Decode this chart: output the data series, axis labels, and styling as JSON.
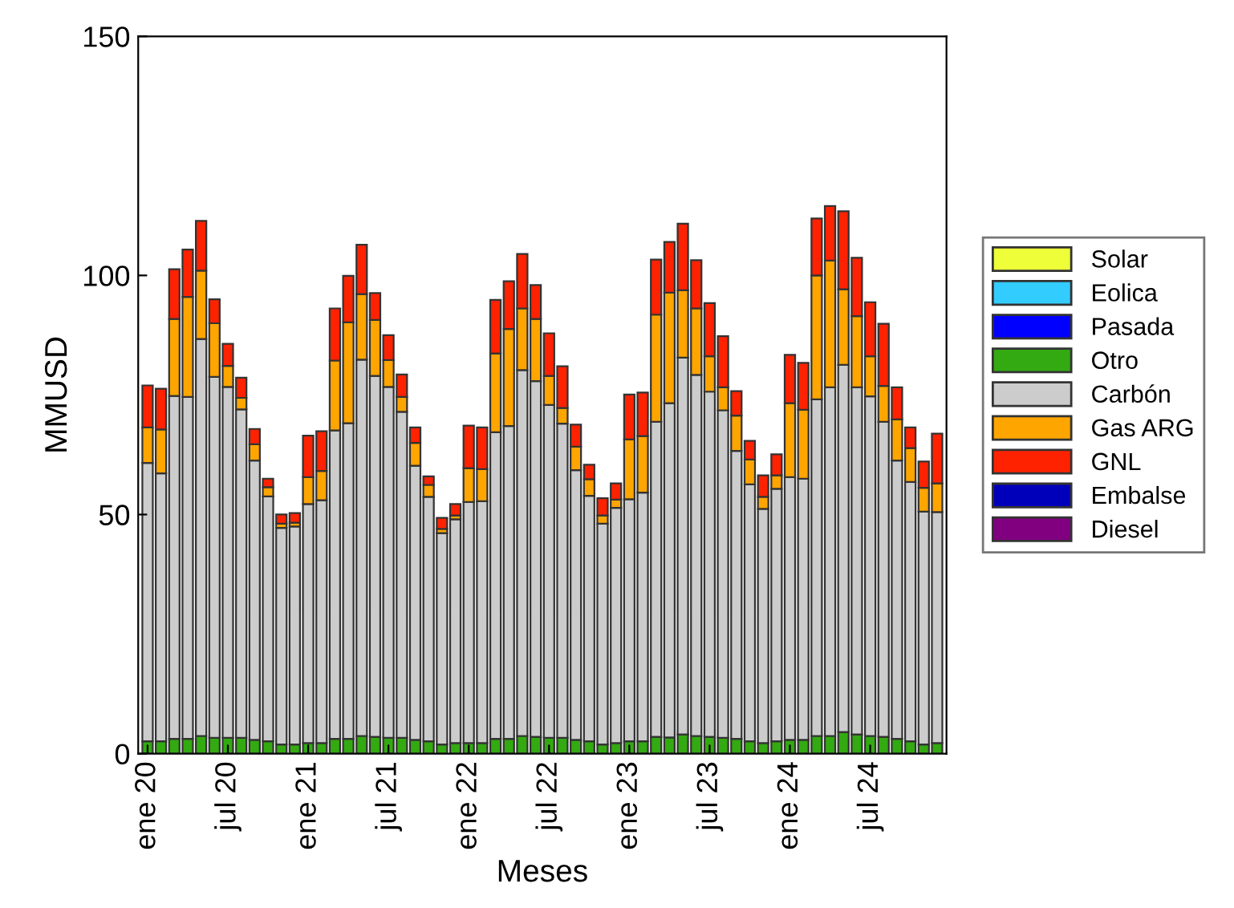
{
  "chart_data": {
    "type": "bar",
    "stacked": true,
    "xlabel": "Meses",
    "ylabel": "MMUSD",
    "categories": [
      "ene 20",
      null,
      null,
      null,
      null,
      null,
      "jul 20",
      null,
      null,
      null,
      null,
      null,
      "ene 21",
      null,
      null,
      null,
      null,
      null,
      "jul 21",
      null,
      null,
      null,
      null,
      null,
      "ene 22",
      null,
      null,
      null,
      null,
      null,
      "jul 22",
      null,
      null,
      null,
      null,
      null,
      "ene 23",
      null,
      null,
      null,
      null,
      null,
      "jul 23",
      null,
      null,
      null,
      null,
      null,
      "ene 24",
      null,
      null,
      null,
      null,
      null,
      "jul 24",
      null,
      null,
      null,
      null,
      null
    ],
    "ylim": [
      0,
      150
    ],
    "yticks": [
      0,
      50,
      100,
      150
    ],
    "grid": false,
    "legend": "right",
    "series": [
      {
        "name": "Solar",
        "color": "#eeff3a",
        "values": [
          0,
          0,
          0,
          0,
          0,
          0,
          0,
          0,
          0,
          0,
          0,
          0,
          0,
          0,
          0,
          0,
          0,
          0,
          0,
          0,
          0,
          0,
          0,
          0,
          0,
          0,
          0,
          0,
          0,
          0,
          0,
          0,
          0,
          0,
          0,
          0,
          0,
          0,
          0,
          0,
          0,
          0,
          0,
          0,
          0,
          0,
          0,
          0,
          0,
          0,
          0,
          0,
          0,
          0,
          0,
          0,
          0,
          0,
          0,
          0
        ]
      },
      {
        "name": "Eolica",
        "color": "#33ccff",
        "values": [
          0,
          0,
          0,
          0,
          0,
          0,
          0,
          0,
          0,
          0,
          0,
          0,
          0,
          0,
          0,
          0,
          0,
          0,
          0,
          0,
          0,
          0,
          0,
          0,
          0,
          0,
          0,
          0,
          0,
          0,
          0,
          0,
          0,
          0,
          0,
          0,
          0,
          0,
          0,
          0,
          0,
          0,
          0,
          0,
          0,
          0,
          0,
          0,
          0,
          0,
          0,
          0,
          0,
          0,
          0,
          0,
          0,
          0,
          0,
          0
        ]
      },
      {
        "name": "Pasada",
        "color": "#0000ff",
        "values": [
          0,
          0,
          0,
          0,
          0,
          0,
          0,
          0,
          0,
          0,
          0,
          0,
          0,
          0,
          0,
          0,
          0,
          0,
          0,
          0,
          0,
          0,
          0,
          0,
          0,
          0,
          0,
          0,
          0,
          0,
          0,
          0,
          0,
          0,
          0,
          0,
          0,
          0,
          0,
          0,
          0,
          0,
          0,
          0,
          0,
          0,
          0,
          0,
          0,
          0,
          0,
          0,
          0,
          0,
          0,
          0,
          0,
          0,
          0,
          0
        ]
      },
      {
        "name": "Otro",
        "color": "#33aa11",
        "values": [
          2.6,
          2.6,
          3.1,
          3.1,
          3.7,
          3.3,
          3.3,
          3.3,
          2.9,
          2.6,
          1.9,
          1.9,
          2.2,
          2.2,
          3.1,
          3.1,
          3.7,
          3.5,
          3.3,
          3.3,
          2.9,
          2.6,
          1.9,
          2.2,
          2.2,
          2.2,
          3.1,
          3.1,
          3.7,
          3.5,
          3.3,
          3.3,
          2.9,
          2.6,
          1.9,
          2.2,
          2.6,
          2.6,
          3.5,
          3.4,
          4.0,
          3.7,
          3.5,
          3.3,
          3.1,
          2.6,
          2.2,
          2.6,
          2.9,
          2.9,
          3.7,
          3.7,
          4.5,
          4.0,
          3.7,
          3.5,
          3.1,
          2.6,
          1.9,
          2.2
        ]
      },
      {
        "name": "Carbón",
        "color": "#cccccc",
        "values": [
          58.2,
          56.0,
          71.7,
          71.5,
          83.0,
          75.5,
          73.4,
          68.7,
          58.4,
          51.2,
          45.3,
          45.6,
          50.0,
          50.8,
          64.5,
          66.0,
          78.7,
          75.5,
          73.4,
          68.2,
          57.3,
          51.1,
          44.2,
          46.8,
          50.4,
          50.6,
          64.1,
          65.4,
          76.5,
          74.4,
          69.6,
          65.7,
          56.4,
          51.3,
          46.2,
          49.2,
          50.6,
          52.0,
          65.9,
          69.9,
          78.8,
          75.5,
          72.2,
          68.5,
          60.2,
          53.7,
          49.0,
          52.8,
          54.9,
          54.6,
          70.4,
          72.9,
          76.8,
          72.6,
          71.0,
          65.9,
          58.2,
          54.2,
          48.7,
          48.3
        ]
      },
      {
        "name": "Gas ARG",
        "color": "#ffa500",
        "values": [
          7.4,
          9.2,
          16.1,
          20.9,
          14.3,
          11.2,
          4.4,
          2.4,
          3.4,
          1.9,
          0.9,
          0.8,
          5.6,
          6.1,
          14.6,
          21.1,
          13.7,
          11.7,
          5.6,
          3.1,
          4.8,
          2.5,
          0.9,
          0.8,
          7.1,
          6.7,
          16.5,
          20.3,
          12.9,
          13.0,
          6.1,
          3.3,
          4.9,
          3.5,
          1.7,
          1.7,
          12.5,
          11.8,
          22.4,
          23.1,
          14.1,
          13.9,
          7.4,
          4.8,
          7.4,
          5.2,
          2.5,
          2.8,
          15.5,
          14.4,
          25.9,
          26.5,
          15.8,
          14.9,
          8.4,
          7.5,
          8.6,
          7.1,
          5.0,
          6.0
        ]
      },
      {
        "name": "GNL",
        "color": "#ff2200",
        "values": [
          8.8,
          8.5,
          10.4,
          9.9,
          10.4,
          5.0,
          4.6,
          4.2,
          3.2,
          1.8,
          1.9,
          2.0,
          8.7,
          8.3,
          10.9,
          9.7,
          10.3,
          5.6,
          5.2,
          4.7,
          3.2,
          1.8,
          2.3,
          2.4,
          8.9,
          8.7,
          11.2,
          10.0,
          11.4,
          7.1,
          8.9,
          8.7,
          4.6,
          3.0,
          3.6,
          3.4,
          9.4,
          9.1,
          11.5,
          10.6,
          13.9,
          10.1,
          11.1,
          10.7,
          5.1,
          3.9,
          4.5,
          4.4,
          10.1,
          9.8,
          11.9,
          11.4,
          16.3,
          12.2,
          11.3,
          13.0,
          6.7,
          4.3,
          5.5,
          10.4
        ]
      },
      {
        "name": "Embalse",
        "color": "#0000bb",
        "values": [
          0,
          0,
          0,
          0,
          0,
          0,
          0,
          0,
          0,
          0,
          0,
          0,
          0,
          0,
          0,
          0,
          0,
          0,
          0,
          0,
          0,
          0,
          0,
          0,
          0,
          0,
          0,
          0,
          0,
          0,
          0,
          0,
          0,
          0,
          0,
          0,
          0,
          0,
          0,
          0,
          0,
          0,
          0,
          0,
          0,
          0,
          0,
          0,
          0,
          0,
          0,
          0,
          0,
          0,
          0,
          0,
          0,
          0,
          0,
          0
        ]
      },
      {
        "name": "Diesel",
        "color": "#800080",
        "values": [
          0,
          0,
          0,
          0,
          0,
          0,
          0,
          0,
          0,
          0,
          0,
          0,
          0,
          0,
          0,
          0,
          0,
          0,
          0,
          0,
          0,
          0,
          0,
          0,
          0,
          0,
          0,
          0,
          0,
          0,
          0,
          0,
          0,
          0,
          0,
          0,
          0,
          0,
          0,
          0,
          0,
          0,
          0,
          0,
          0,
          0,
          0,
          0,
          0,
          0,
          0,
          0,
          0,
          0,
          0,
          0,
          0,
          0,
          0,
          0
        ]
      }
    ]
  }
}
